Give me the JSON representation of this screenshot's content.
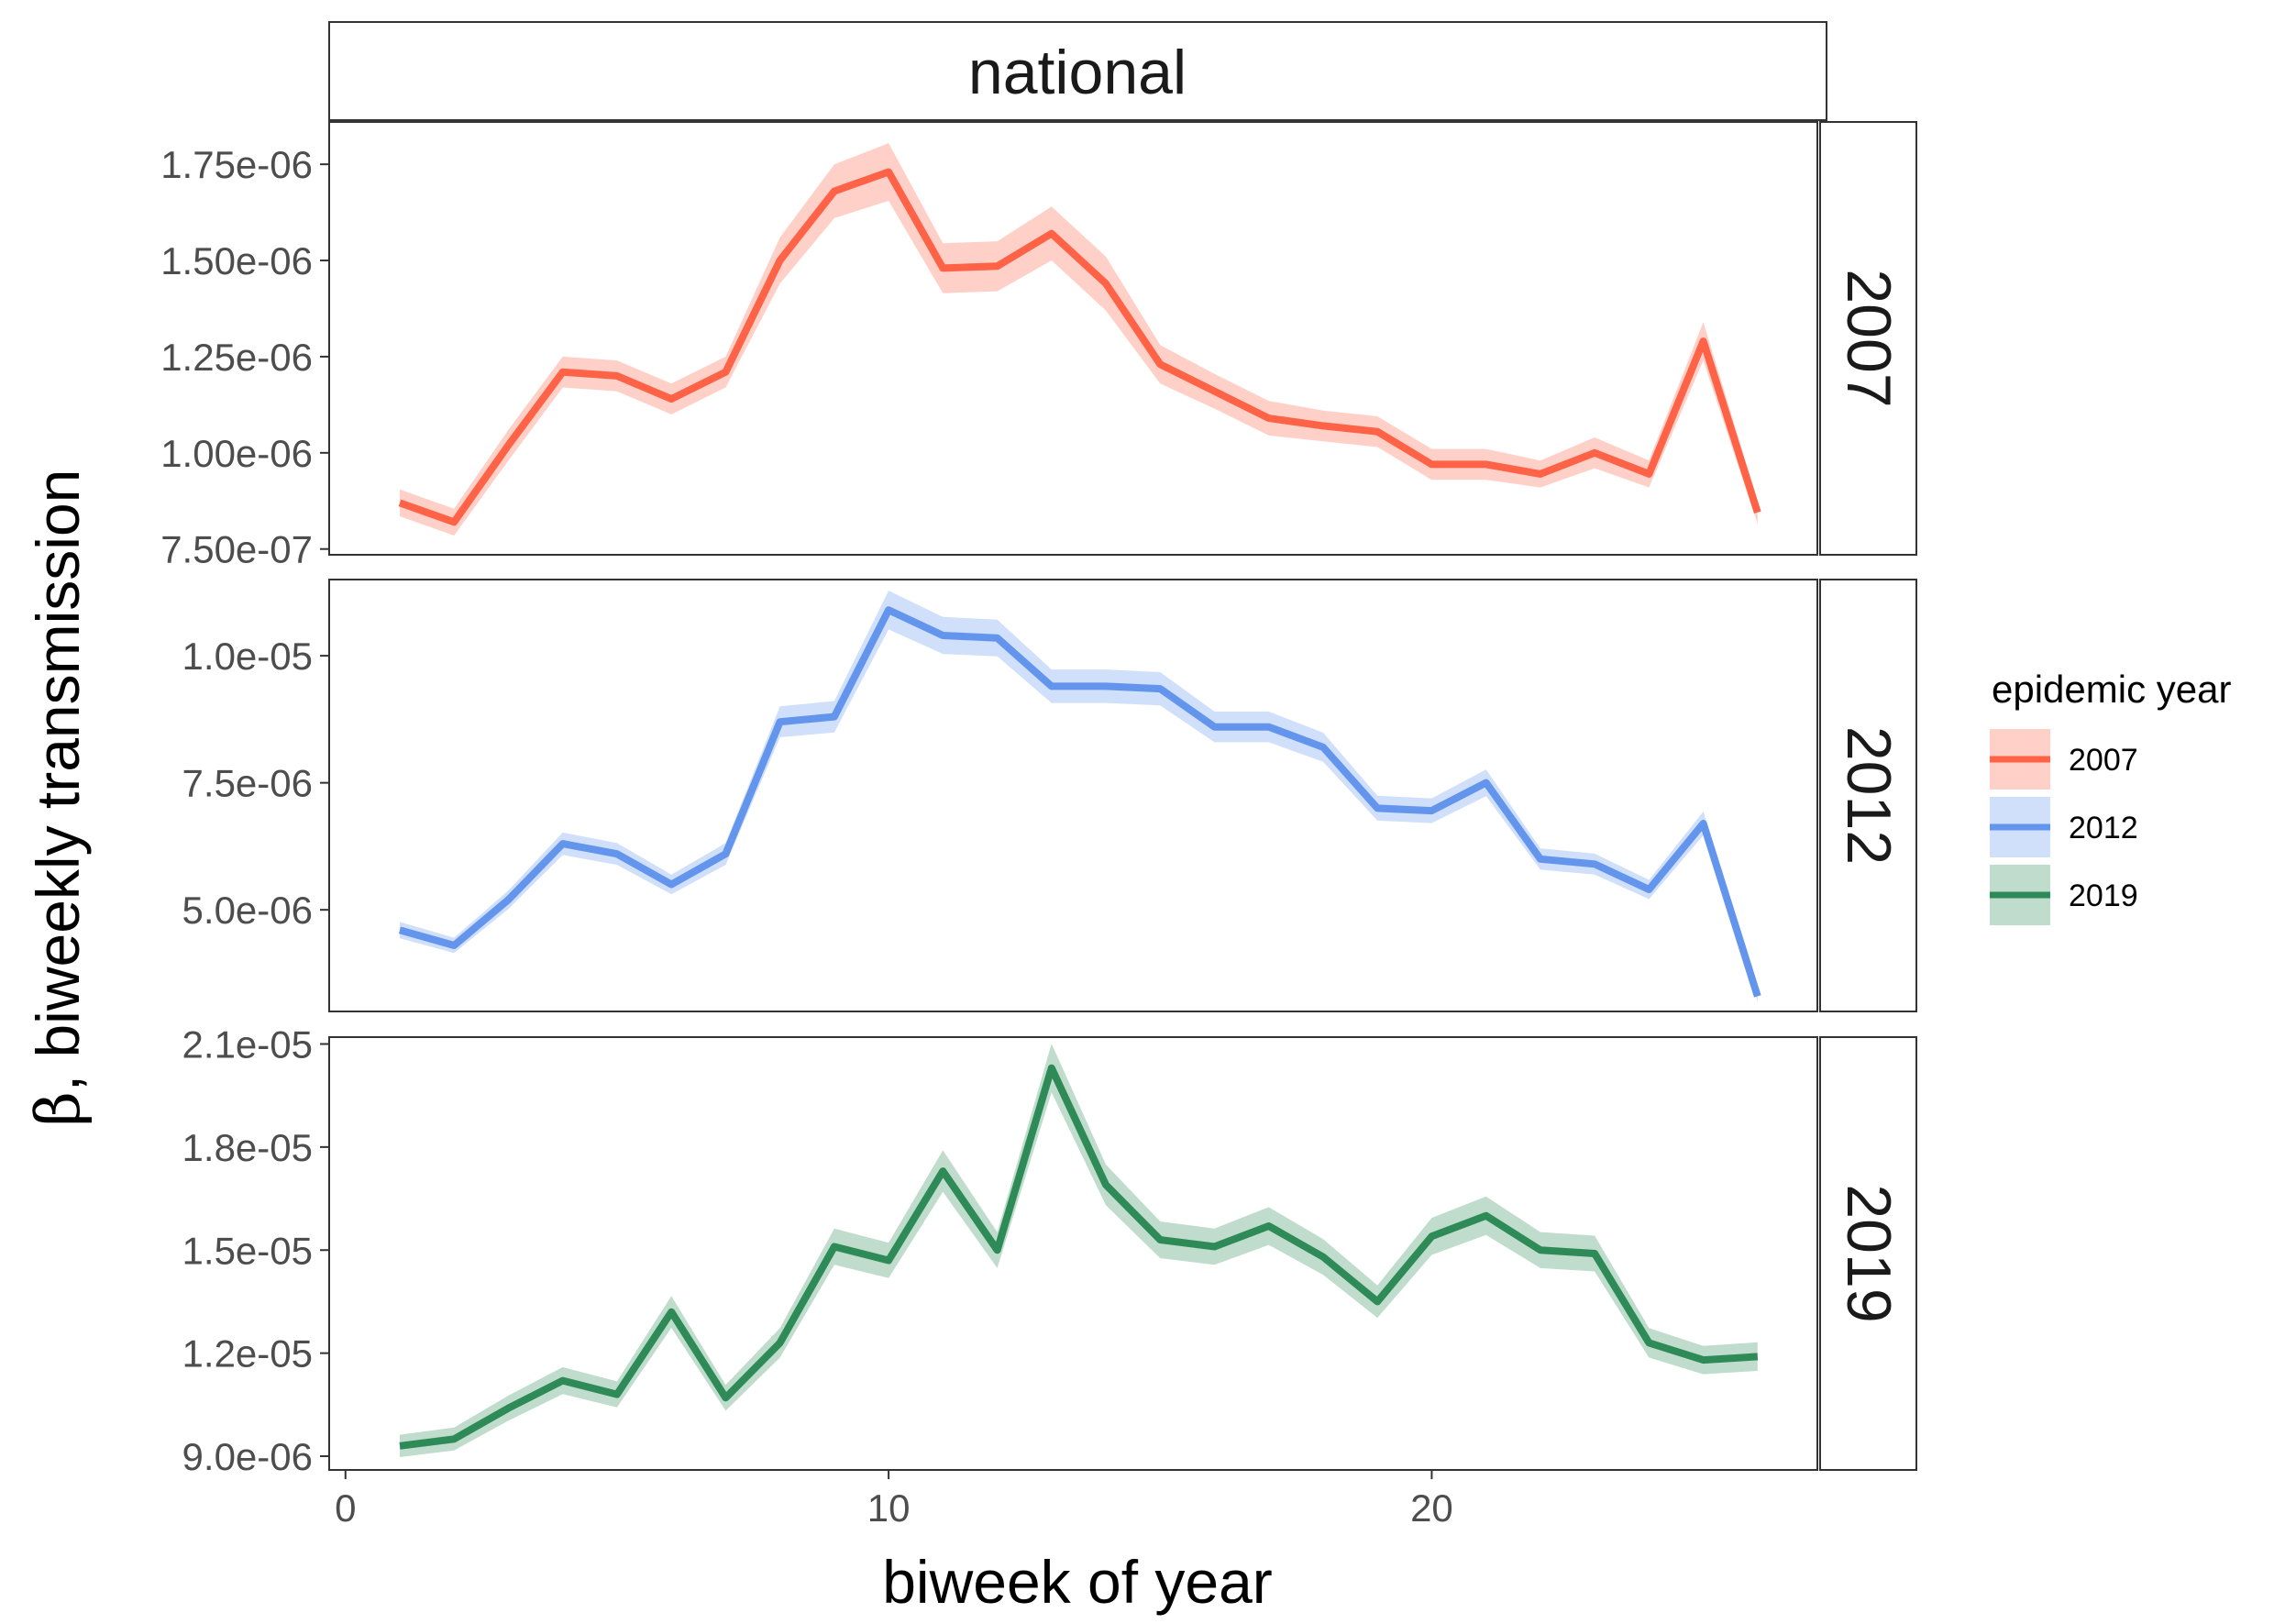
{
  "chart_data": {
    "type": "line",
    "facet_title": "national",
    "xlabel": "biweek of year",
    "ylabel_greek": "β",
    "ylabel_rest": ", biweekly transmission",
    "x_ticks": [
      0,
      10,
      20
    ],
    "xlim": [
      -0.3,
      27.1
    ],
    "legend": {
      "title": "epidemic year",
      "entries": [
        "2007",
        "2012",
        "2019"
      ]
    },
    "panels": [
      {
        "label": "2007",
        "color": "#FF6347",
        "ribbon_color": "#FF6347",
        "ylim": [
          7.35e-07,
          1.86e-06
        ],
        "y_ticks": [
          7.5e-07,
          1e-06,
          1.25e-06,
          1.5e-06,
          1.75e-06
        ],
        "y_tick_labels": [
          "7.50e-07",
          "1.00e-06",
          "1.25e-06",
          "1.50e-06",
          "1.75e-06"
        ],
        "x": [
          1,
          2,
          3,
          4,
          5,
          6,
          7,
          8,
          9,
          10,
          11,
          12,
          13,
          14,
          15,
          16,
          17,
          18,
          19,
          20,
          21,
          22,
          23,
          24,
          25,
          26
        ],
        "values": [
          8.7e-07,
          8.2e-07,
          1.02e-06,
          1.21e-06,
          1.2e-06,
          1.14e-06,
          1.21e-06,
          1.5e-06,
          1.68e-06,
          1.73e-06,
          1.48e-06,
          1.485e-06,
          1.57e-06,
          1.44e-06,
          1.23e-06,
          1.16e-06,
          1.09e-06,
          1.07e-06,
          1.055e-06,
          9.7e-07,
          9.7e-07,
          9.45e-07,
          1e-06,
          9.45e-07,
          1.29e-06,
          8.45e-07
        ],
        "ribbon_halfwidth": [
          3.5e-08,
          3.5e-08,
          4e-08,
          4e-08,
          4e-08,
          4e-08,
          4e-08,
          6e-08,
          7e-08,
          7.5e-08,
          6.5e-08,
          6.5e-08,
          7e-08,
          7e-08,
          5e-08,
          4.5e-08,
          4.5e-08,
          4e-08,
          4e-08,
          4e-08,
          4e-08,
          3.5e-08,
          4e-08,
          3.5e-08,
          5e-08,
          3e-08
        ]
      },
      {
        "label": "2012",
        "color": "#6495ED",
        "ribbon_color": "#6495ED",
        "ylim": [
          3e-06,
          1.15e-05
        ],
        "y_ticks": [
          5e-06,
          7.5e-06,
          1e-05
        ],
        "y_tick_labels": [
          "5.0e-06",
          "7.5e-06",
          "1.0e-05"
        ],
        "x": [
          1,
          2,
          3,
          4,
          5,
          6,
          7,
          8,
          9,
          10,
          11,
          12,
          13,
          14,
          15,
          16,
          17,
          18,
          19,
          20,
          21,
          22,
          23,
          24,
          25,
          26
        ],
        "values": [
          4.6e-06,
          4.3e-06,
          5.2e-06,
          6.3e-06,
          6.1e-06,
          5.5e-06,
          6.1e-06,
          8.7e-06,
          8.8e-06,
          1.09e-05,
          1.04e-05,
          1.035e-05,
          9.4e-06,
          9.4e-06,
          9.35e-06,
          8.6e-06,
          8.6e-06,
          8.2e-06,
          7e-06,
          6.95e-06,
          7.5e-06,
          6e-06,
          5.9e-06,
          5.4e-06,
          6.7e-06,
          3.3e-06
        ]
      },
      {
        "label": "2019",
        "color": "#2E8B57",
        "ribbon_color": "#2E8B57",
        "ylim": [
          8.6e-06,
          2.12e-05
        ],
        "y_ticks": [
          9e-06,
          1.2e-05,
          1.5e-05,
          1.8e-05,
          2.1e-05
        ],
        "y_tick_labels": [
          "9.0e-06",
          "1.2e-05",
          "1.5e-05",
          "1.8e-05",
          "2.1e-05"
        ],
        "x": [
          1,
          2,
          3,
          4,
          5,
          6,
          7,
          8,
          9,
          10,
          11,
          12,
          13,
          14,
          15,
          16,
          17,
          18,
          19,
          20,
          21,
          22,
          23,
          24,
          25,
          26
        ],
        "values": [
          9.3e-06,
          9.5e-06,
          1.04e-05,
          1.12e-05,
          1.08e-05,
          1.32e-05,
          1.07e-05,
          1.23e-05,
          1.51e-05,
          1.47e-05,
          1.73e-05,
          1.5e-05,
          2.03e-05,
          1.69e-05,
          1.53e-05,
          1.51e-05,
          1.57e-05,
          1.48e-05,
          1.35e-05,
          1.54e-05,
          1.6e-05,
          1.5e-05,
          1.49e-05,
          1.23e-05,
          1.18e-05,
          1.19e-05
        ]
      }
    ]
  }
}
